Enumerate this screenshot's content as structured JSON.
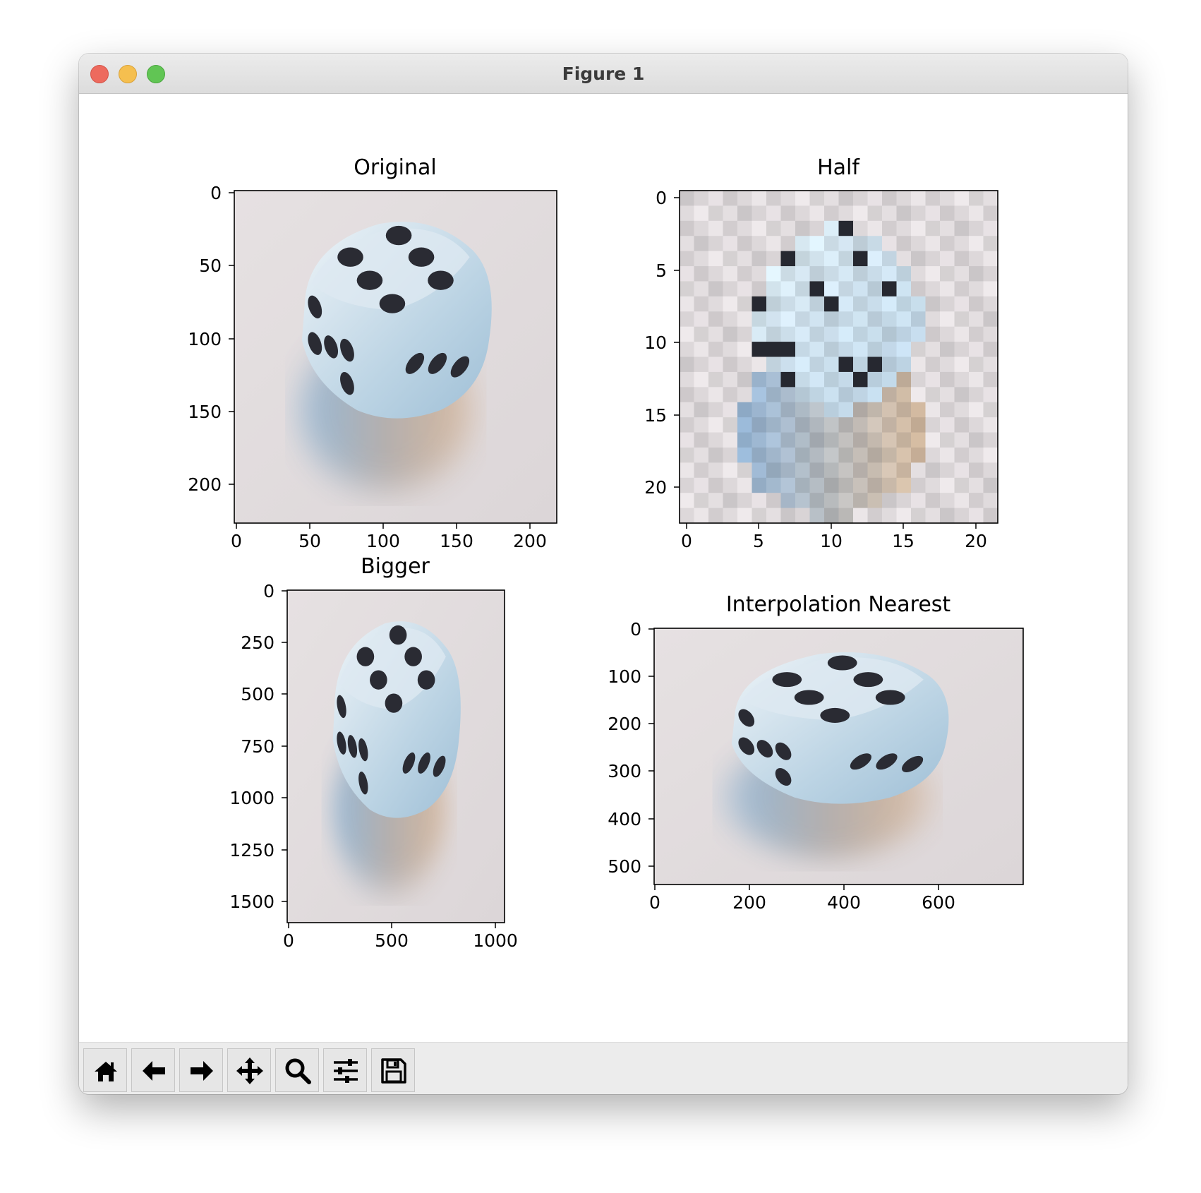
{
  "window": {
    "title": "Figure 1"
  },
  "subplots": [
    {
      "title": "Original",
      "image": "dice photo",
      "xticks": [
        "0",
        "50",
        "100",
        "150",
        "200"
      ],
      "yticks": [
        "0",
        "50",
        "100",
        "150",
        "200"
      ]
    },
    {
      "title": "Half",
      "image": "dice photo pixelated",
      "xticks": [
        "0",
        "5",
        "10",
        "15",
        "20"
      ],
      "yticks": [
        "0",
        "5",
        "10",
        "15",
        "20"
      ]
    },
    {
      "title": "Bigger",
      "image": "dice photo stretched vertically",
      "xticks": [
        "0",
        "500",
        "1000"
      ],
      "yticks": [
        "0",
        "250",
        "500",
        "750",
        "1000",
        "1250",
        "1500"
      ]
    },
    {
      "title": "Interpolation Nearest",
      "image": "dice photo stretched horizontally",
      "xticks": [
        "0",
        "200",
        "400",
        "600"
      ],
      "yticks": [
        "0",
        "100",
        "200",
        "300",
        "400",
        "500"
      ]
    }
  ],
  "toolbar": {
    "buttons": [
      {
        "name": "home",
        "icon": "home-icon"
      },
      {
        "name": "back",
        "icon": "arrow-left-icon"
      },
      {
        "name": "forward",
        "icon": "arrow-right-icon"
      },
      {
        "name": "pan",
        "icon": "move-icon"
      },
      {
        "name": "zoom",
        "icon": "magnifier-icon"
      },
      {
        "name": "configure",
        "icon": "sliders-icon"
      },
      {
        "name": "save",
        "icon": "floppy-icon"
      }
    ]
  }
}
